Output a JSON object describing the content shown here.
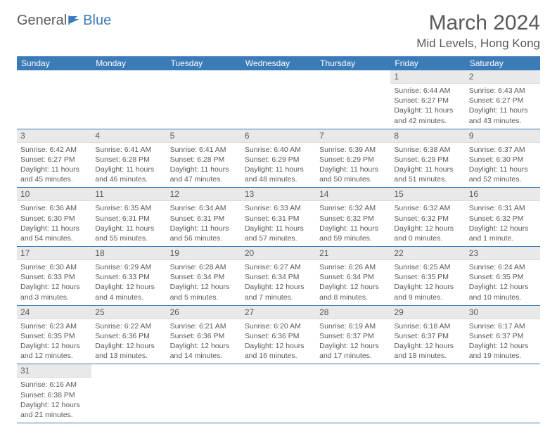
{
  "logo": {
    "text1": "General",
    "text2": "Blue",
    "flag_color": "#3b7bb8"
  },
  "title": "March 2024",
  "location": "Mid Levels, Hong Kong",
  "colors": {
    "header_bg": "#3b7bb8",
    "header_text": "#ffffff",
    "daynum_bg": "#e9e9e9",
    "text": "#5a5a5a",
    "row_border": "#3b7bb8"
  },
  "weekdays": [
    "Sunday",
    "Monday",
    "Tuesday",
    "Wednesday",
    "Thursday",
    "Friday",
    "Saturday"
  ],
  "weeks": [
    [
      null,
      null,
      null,
      null,
      null,
      {
        "n": "1",
        "sr": "6:44 AM",
        "ss": "6:27 PM",
        "dl": "11 hours and 42 minutes."
      },
      {
        "n": "2",
        "sr": "6:43 AM",
        "ss": "6:27 PM",
        "dl": "11 hours and 43 minutes."
      }
    ],
    [
      {
        "n": "3",
        "sr": "6:42 AM",
        "ss": "6:27 PM",
        "dl": "11 hours and 45 minutes."
      },
      {
        "n": "4",
        "sr": "6:41 AM",
        "ss": "6:28 PM",
        "dl": "11 hours and 46 minutes."
      },
      {
        "n": "5",
        "sr": "6:41 AM",
        "ss": "6:28 PM",
        "dl": "11 hours and 47 minutes."
      },
      {
        "n": "6",
        "sr": "6:40 AM",
        "ss": "6:29 PM",
        "dl": "11 hours and 48 minutes."
      },
      {
        "n": "7",
        "sr": "6:39 AM",
        "ss": "6:29 PM",
        "dl": "11 hours and 50 minutes."
      },
      {
        "n": "8",
        "sr": "6:38 AM",
        "ss": "6:29 PM",
        "dl": "11 hours and 51 minutes."
      },
      {
        "n": "9",
        "sr": "6:37 AM",
        "ss": "6:30 PM",
        "dl": "11 hours and 52 minutes."
      }
    ],
    [
      {
        "n": "10",
        "sr": "6:36 AM",
        "ss": "6:30 PM",
        "dl": "11 hours and 54 minutes."
      },
      {
        "n": "11",
        "sr": "6:35 AM",
        "ss": "6:31 PM",
        "dl": "11 hours and 55 minutes."
      },
      {
        "n": "12",
        "sr": "6:34 AM",
        "ss": "6:31 PM",
        "dl": "11 hours and 56 minutes."
      },
      {
        "n": "13",
        "sr": "6:33 AM",
        "ss": "6:31 PM",
        "dl": "11 hours and 57 minutes."
      },
      {
        "n": "14",
        "sr": "6:32 AM",
        "ss": "6:32 PM",
        "dl": "11 hours and 59 minutes."
      },
      {
        "n": "15",
        "sr": "6:32 AM",
        "ss": "6:32 PM",
        "dl": "12 hours and 0 minutes."
      },
      {
        "n": "16",
        "sr": "6:31 AM",
        "ss": "6:32 PM",
        "dl": "12 hours and 1 minute."
      }
    ],
    [
      {
        "n": "17",
        "sr": "6:30 AM",
        "ss": "6:33 PM",
        "dl": "12 hours and 3 minutes."
      },
      {
        "n": "18",
        "sr": "6:29 AM",
        "ss": "6:33 PM",
        "dl": "12 hours and 4 minutes."
      },
      {
        "n": "19",
        "sr": "6:28 AM",
        "ss": "6:34 PM",
        "dl": "12 hours and 5 minutes."
      },
      {
        "n": "20",
        "sr": "6:27 AM",
        "ss": "6:34 PM",
        "dl": "12 hours and 7 minutes."
      },
      {
        "n": "21",
        "sr": "6:26 AM",
        "ss": "6:34 PM",
        "dl": "12 hours and 8 minutes."
      },
      {
        "n": "22",
        "sr": "6:25 AM",
        "ss": "6:35 PM",
        "dl": "12 hours and 9 minutes."
      },
      {
        "n": "23",
        "sr": "6:24 AM",
        "ss": "6:35 PM",
        "dl": "12 hours and 10 minutes."
      }
    ],
    [
      {
        "n": "24",
        "sr": "6:23 AM",
        "ss": "6:35 PM",
        "dl": "12 hours and 12 minutes."
      },
      {
        "n": "25",
        "sr": "6:22 AM",
        "ss": "6:36 PM",
        "dl": "12 hours and 13 minutes."
      },
      {
        "n": "26",
        "sr": "6:21 AM",
        "ss": "6:36 PM",
        "dl": "12 hours and 14 minutes."
      },
      {
        "n": "27",
        "sr": "6:20 AM",
        "ss": "6:36 PM",
        "dl": "12 hours and 16 minutes."
      },
      {
        "n": "28",
        "sr": "6:19 AM",
        "ss": "6:37 PM",
        "dl": "12 hours and 17 minutes."
      },
      {
        "n": "29",
        "sr": "6:18 AM",
        "ss": "6:37 PM",
        "dl": "12 hours and 18 minutes."
      },
      {
        "n": "30",
        "sr": "6:17 AM",
        "ss": "6:37 PM",
        "dl": "12 hours and 19 minutes."
      }
    ],
    [
      {
        "n": "31",
        "sr": "6:16 AM",
        "ss": "6:38 PM",
        "dl": "12 hours and 21 minutes."
      },
      null,
      null,
      null,
      null,
      null,
      null
    ]
  ],
  "labels": {
    "sunrise": "Sunrise:",
    "sunset": "Sunset:",
    "daylight": "Daylight:"
  }
}
